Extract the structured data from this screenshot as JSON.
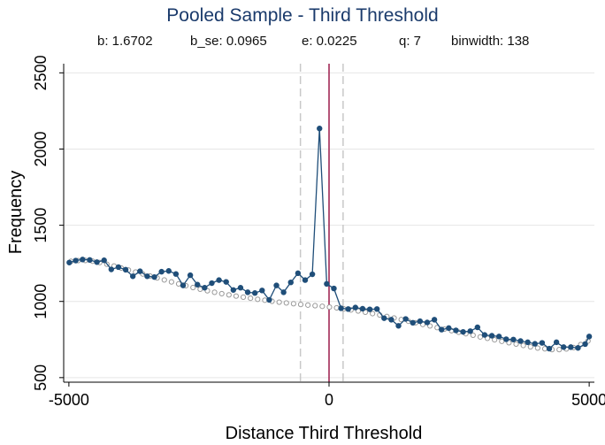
{
  "chart_data": {
    "type": "scatter",
    "title": "Pooled Sample - Third Threshold",
    "subtitle": {
      "b": "b: 1.6702",
      "b_se": "b_se: 0.0965",
      "e": "e: 0.0225",
      "q": "q: 7",
      "binwidth": "binwidth: 138"
    },
    "xlabel": "Distance Third Threshold",
    "ylabel": "Frequency",
    "xlim": [
      -5100,
      5100
    ],
    "ylim": [
      470,
      2560
    ],
    "xticks": [
      -5000,
      0,
      5000
    ],
    "xtick_labels": [
      "-5000",
      "0",
      "5000"
    ],
    "yticks": [
      500,
      1000,
      1500,
      2000,
      2500
    ],
    "ytick_labels": [
      "500",
      "1000",
      "1500",
      "2000",
      "2500"
    ],
    "grid": "horizontal",
    "threshold_line": 0,
    "window_lines": [
      -550,
      270
    ],
    "series": [
      {
        "role": "observed",
        "style": "connected-dots",
        "color": "#1f4e79",
        "x": [
          -4992,
          -4868,
          -4737,
          -4599,
          -4461,
          -4323,
          -4185,
          -4047,
          -3909,
          -3771,
          -3633,
          -3495,
          -3357,
          -3219,
          -3081,
          -2943,
          -2805,
          -2667,
          -2529,
          -2391,
          -2253,
          -2115,
          -1977,
          -1839,
          -1701,
          -1563,
          -1425,
          -1287,
          -1149,
          -1011,
          -873,
          -735,
          -597,
          -459,
          -321,
          -183,
          -45,
          93,
          231,
          369,
          507,
          645,
          783,
          921,
          1059,
          1197,
          1335,
          1473,
          1611,
          1749,
          1887,
          2025,
          2163,
          2301,
          2439,
          2577,
          2715,
          2853,
          2991,
          3129,
          3267,
          3405,
          3543,
          3681,
          3819,
          3957,
          4095,
          4233,
          4371,
          4509,
          4647,
          4785,
          4923,
          5000
        ],
        "values": [
          1255,
          1268,
          1275,
          1272,
          1258,
          1270,
          1210,
          1225,
          1208,
          1165,
          1198,
          1165,
          1160,
          1195,
          1200,
          1180,
          1105,
          1172,
          1110,
          1090,
          1120,
          1140,
          1128,
          1075,
          1090,
          1060,
          1055,
          1072,
          1010,
          1105,
          1060,
          1125,
          1185,
          1140,
          1178,
          2135,
          1115,
          1085,
          955,
          950,
          960,
          952,
          948,
          950,
          890,
          880,
          840,
          885,
          860,
          870,
          862,
          880,
          815,
          825,
          810,
          800,
          805,
          830,
          780,
          775,
          770,
          752,
          750,
          740,
          732,
          722,
          728,
          690,
          732,
          700,
          700,
          695,
          720,
          770
        ]
      },
      {
        "role": "counterfactual",
        "style": "hollow-dots",
        "color": "#9a9a9a",
        "x": [
          -4960,
          -4822,
          -4684,
          -4546,
          -4408,
          -4270,
          -4132,
          -3994,
          -3856,
          -3718,
          -3580,
          -3442,
          -3304,
          -3166,
          -3028,
          -2890,
          -2752,
          -2614,
          -2476,
          -2338,
          -2200,
          -2062,
          -1924,
          -1786,
          -1648,
          -1510,
          -1372,
          -1234,
          -1096,
          -958,
          -820,
          -682,
          -544,
          -406,
          -268,
          -130,
          8,
          146,
          284,
          422,
          560,
          698,
          836,
          974,
          1112,
          1250,
          1388,
          1526,
          1664,
          1802,
          1940,
          2078,
          2216,
          2354,
          2492,
          2630,
          2768,
          2906,
          3044,
          3182,
          3320,
          3458,
          3596,
          3734,
          3872,
          4010,
          4148,
          4286,
          4424,
          4562,
          4700,
          4838,
          4976
        ],
        "values": [
          1263,
          1268,
          1269,
          1264,
          1255,
          1244,
          1232,
          1219,
          1206,
          1193,
          1180,
          1167,
          1154,
          1141,
          1128,
          1115,
          1103,
          1091,
          1080,
          1070,
          1060,
          1051,
          1043,
          1035,
          1028,
          1021,
          1014,
          1008,
          1001,
          995,
          990,
          985,
          980,
          976,
          972,
          968,
          963,
          958,
          951,
          944,
          937,
          929,
          920,
          911,
          901,
          891,
          881,
          870,
          860,
          849,
          839,
          828,
          818,
          808,
          798,
          788,
          778,
          767,
          758,
          748,
          738,
          729,
          720,
          711,
          702,
          694,
          689,
          684,
          684,
          688,
          697,
          717,
          740
        ]
      }
    ]
  }
}
